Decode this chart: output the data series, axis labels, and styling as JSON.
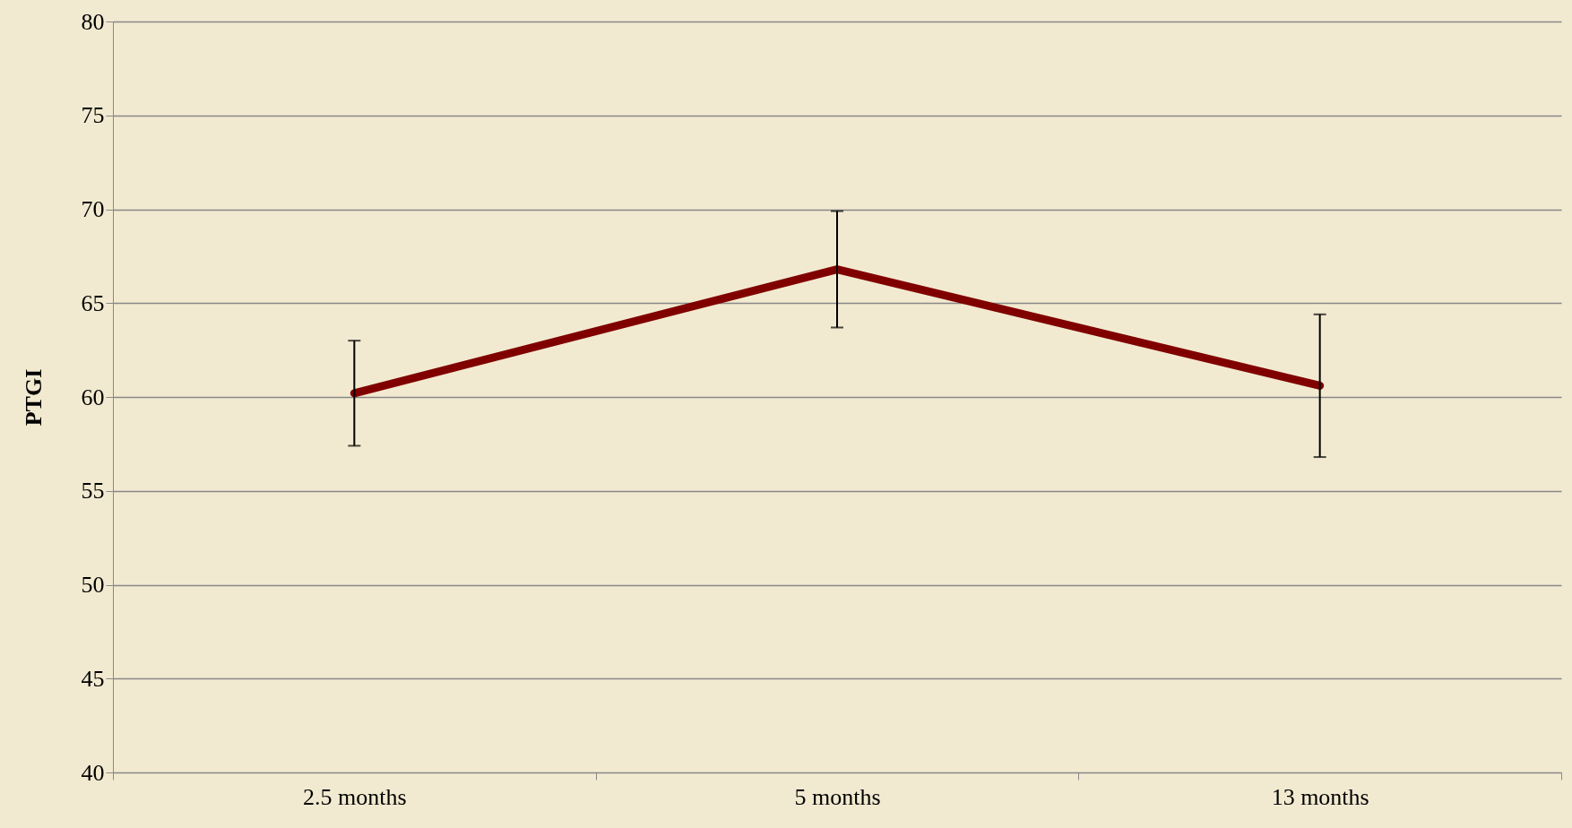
{
  "chart_data": {
    "type": "line",
    "ylabel": "PTGI",
    "categories": [
      "2.5 months",
      "5 months",
      "13 months"
    ],
    "series": [
      {
        "color": "#800000",
        "values": [
          60.2,
          66.8,
          60.6
        ],
        "errors": [
          [
            57.4,
            63.0
          ],
          [
            63.7,
            69.9
          ],
          [
            56.8,
            64.4
          ]
        ]
      }
    ],
    "ylim": [
      40,
      80
    ],
    "yticks": [
      40,
      45,
      50,
      55,
      60,
      65,
      70,
      75,
      80
    ],
    "grid": "y",
    "line_style": "solid"
  }
}
